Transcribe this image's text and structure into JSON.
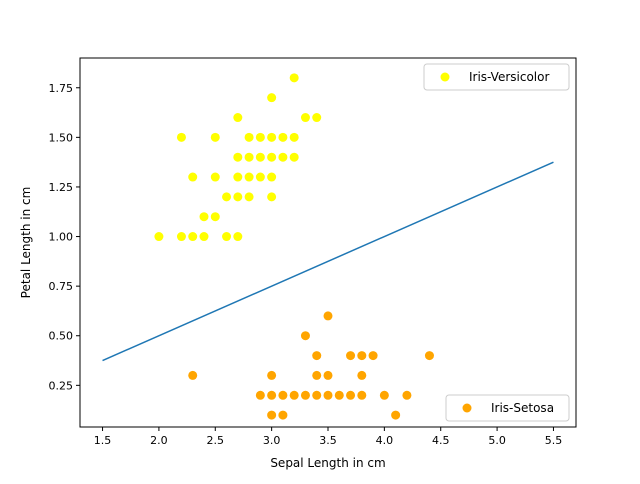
{
  "chart_data": {
    "type": "scatter",
    "title": "",
    "xlabel": "Sepal Length in cm",
    "ylabel": "Petal Length in cm",
    "xlim": [
      1.3,
      5.7
    ],
    "ylim": [
      0.04,
      1.9
    ],
    "xticks": [
      "1.5",
      "2.0",
      "2.5",
      "3.0",
      "3.5",
      "4.0",
      "4.5",
      "5.0",
      "5.5"
    ],
    "yticks": [
      "0.25",
      "0.50",
      "0.75",
      "1.00",
      "1.25",
      "1.50",
      "1.75"
    ],
    "grid": false,
    "series": [
      {
        "name": "Iris-Versicolor",
        "color": "#ffff00",
        "legend_placement": "top-right",
        "points": [
          [
            3.2,
            1.8
          ],
          [
            3.0,
            1.7
          ],
          [
            2.7,
            1.6
          ],
          [
            3.3,
            1.6
          ],
          [
            3.4,
            1.6
          ],
          [
            2.2,
            1.5
          ],
          [
            2.5,
            1.5
          ],
          [
            2.8,
            1.5
          ],
          [
            2.9,
            1.5
          ],
          [
            3.0,
            1.5
          ],
          [
            3.1,
            1.5
          ],
          [
            3.2,
            1.5
          ],
          [
            2.7,
            1.4
          ],
          [
            2.8,
            1.4
          ],
          [
            2.9,
            1.4
          ],
          [
            3.0,
            1.4
          ],
          [
            3.1,
            1.4
          ],
          [
            3.2,
            1.4
          ],
          [
            2.3,
            1.3
          ],
          [
            2.5,
            1.3
          ],
          [
            2.7,
            1.3
          ],
          [
            2.8,
            1.3
          ],
          [
            2.9,
            1.3
          ],
          [
            3.0,
            1.3
          ],
          [
            2.6,
            1.2
          ],
          [
            2.7,
            1.2
          ],
          [
            2.8,
            1.2
          ],
          [
            3.0,
            1.2
          ],
          [
            2.4,
            1.1
          ],
          [
            2.5,
            1.1
          ],
          [
            2.0,
            1.0
          ],
          [
            2.2,
            1.0
          ],
          [
            2.3,
            1.0
          ],
          [
            2.4,
            1.0
          ],
          [
            2.6,
            1.0
          ],
          [
            2.7,
            1.0
          ]
        ]
      },
      {
        "name": "Iris-Setosa",
        "color": "#ffa500",
        "legend_placement": "bottom-right",
        "points": [
          [
            3.5,
            0.6
          ],
          [
            3.3,
            0.5
          ],
          [
            3.4,
            0.4
          ],
          [
            3.7,
            0.4
          ],
          [
            3.8,
            0.4
          ],
          [
            3.9,
            0.4
          ],
          [
            4.4,
            0.4
          ],
          [
            2.3,
            0.3
          ],
          [
            3.0,
            0.3
          ],
          [
            3.4,
            0.3
          ],
          [
            3.5,
            0.3
          ],
          [
            3.8,
            0.3
          ],
          [
            2.9,
            0.2
          ],
          [
            3.0,
            0.2
          ],
          [
            3.1,
            0.2
          ],
          [
            3.2,
            0.2
          ],
          [
            3.3,
            0.2
          ],
          [
            3.4,
            0.2
          ],
          [
            3.5,
            0.2
          ],
          [
            3.6,
            0.2
          ],
          [
            3.7,
            0.2
          ],
          [
            3.8,
            0.2
          ],
          [
            4.0,
            0.2
          ],
          [
            4.2,
            0.2
          ],
          [
            3.0,
            0.1
          ],
          [
            3.1,
            0.1
          ],
          [
            4.1,
            0.1
          ]
        ]
      }
    ],
    "line": {
      "color": "#1f77b4",
      "x": [
        1.5,
        5.5
      ],
      "y": [
        0.375,
        1.375
      ]
    }
  }
}
